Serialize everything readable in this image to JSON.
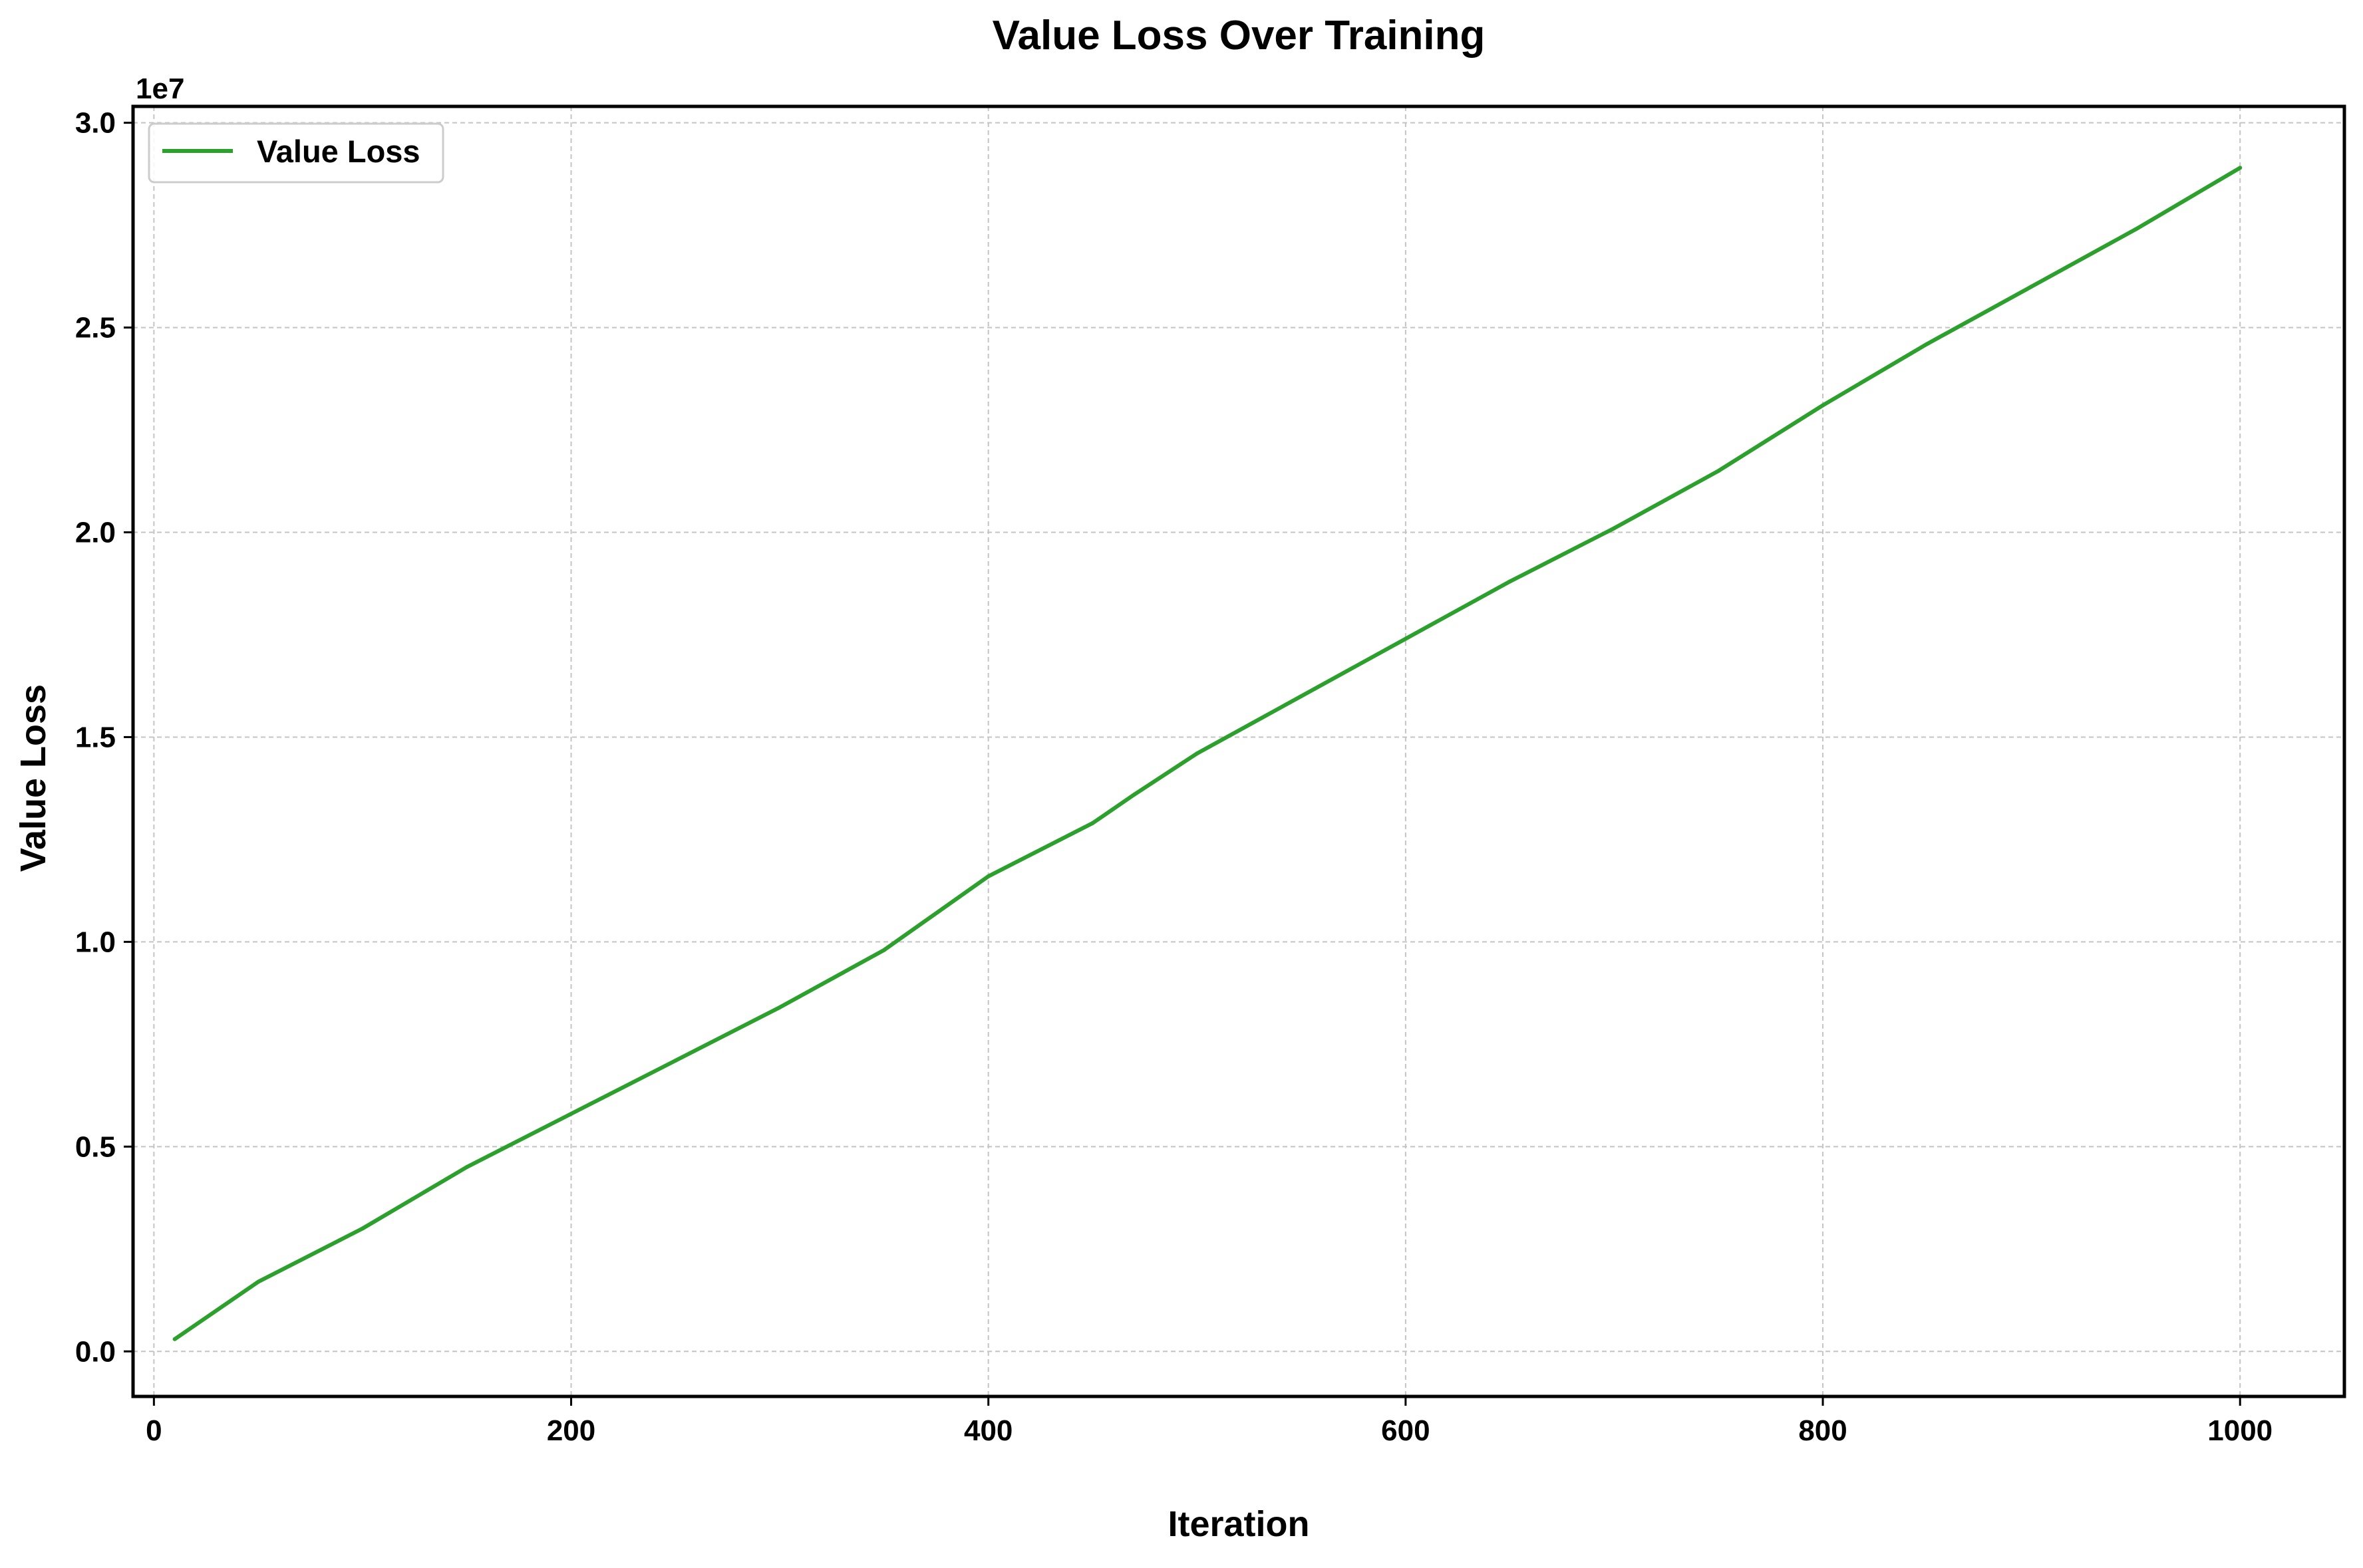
{
  "chart_data": {
    "type": "line",
    "title": "Value Loss Over Training",
    "xlabel": "Iteration",
    "ylabel": "Value Loss",
    "y_offset_label": "1e7",
    "xlim": [
      -10,
      1050
    ],
    "ylim": [
      -1100000,
      30400000
    ],
    "x_ticks": [
      0,
      200,
      400,
      600,
      800,
      1000
    ],
    "x_tick_labels": [
      "0",
      "200",
      "400",
      "600",
      "800",
      "1000"
    ],
    "y_ticks": [
      0,
      5000000,
      10000000,
      15000000,
      20000000,
      25000000,
      30000000
    ],
    "y_tick_labels": [
      "0.0",
      "0.5",
      "1.0",
      "1.5",
      "2.0",
      "2.5",
      "3.0"
    ],
    "grid": true,
    "legend_position": "top-left",
    "series": [
      {
        "name": "Value Loss",
        "color": "#2ca02c",
        "x": [
          10,
          50,
          100,
          150,
          200,
          250,
          300,
          350,
          400,
          450,
          470,
          500,
          550,
          600,
          650,
          700,
          750,
          800,
          850,
          900,
          950,
          1000
        ],
        "y": [
          300000,
          1700000,
          3000000,
          4500000,
          5800000,
          7100000,
          8400000,
          9800000,
          11600000,
          12900000,
          13600000,
          14600000,
          16000000,
          17400000,
          18800000,
          20100000,
          21500000,
          23100000,
          24600000,
          26000000,
          27400000,
          28900000
        ]
      }
    ]
  }
}
